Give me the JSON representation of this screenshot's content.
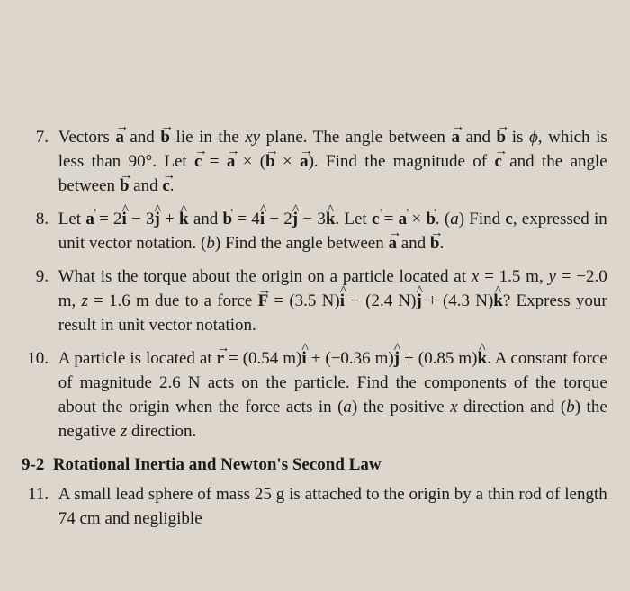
{
  "problems": {
    "p7": {
      "num": "7.",
      "t1": "Vectors ",
      "t2": " and ",
      "t3": " lie in the ",
      "t4": " plane. The angle between ",
      "t5": " and ",
      "t6": " is ",
      "t7": ", which is less than 90°. Let ",
      "t8": " = ",
      "t9": " × (",
      "t10": " × ",
      "t11": "). Find the magnitude of ",
      "t12": " and the angle between ",
      "t13": " and ",
      "t14": "."
    },
    "p8": {
      "num": "8.",
      "t1": "Let  ",
      "t2": " = 2",
      "t3": " − 3",
      "t4": " + ",
      "t5": "  and  ",
      "t6": " = 4",
      "t7": " − 2",
      "t8": " − 3",
      "t9": ".  Let  ",
      "t10": " = ",
      "t11": " × ",
      "t12": ". (",
      "t13": ") Find ",
      "t14": ", expressed in unit vector notation. (",
      "t15": ") Find the angle between ",
      "t16": " and ",
      "t17": "."
    },
    "p9": {
      "num": "9.",
      "t1": "What is the torque about the origin on a particle located at ",
      "t2": " = 1.5 m,  ",
      "t3": " = −2.0 m,  ",
      "t4": " = 1.6 m  due  to  a  force  ",
      "t5": " = (3.5 N)",
      "t6": " − (2.4 N)",
      "t7": " + (4.3 N)",
      "t8": "? Express your result in unit vector notation."
    },
    "p10": {
      "num": "10.",
      "t1": "A  particle  is  located  at  ",
      "t2": " = (0.54 m)",
      "t3": " + (−0.36 m)",
      "t4": " + (0.85 m)",
      "t5": ". A constant force of magnitude 2.6 N acts on the particle. Find the components of the torque about the origin when the force acts in (",
      "t6": ") the positive ",
      "t7": " direction and (",
      "t8": ") the negative ",
      "t9": " direction."
    },
    "p11": {
      "num": "11.",
      "t1": "A small lead sphere of mass 25 g is attached to the origin by a thin rod of length 74 cm and negligible"
    }
  },
  "symbols": {
    "a": "a",
    "b": "b",
    "c": "c",
    "r": "r",
    "F": "F",
    "i": "i",
    "j": "j",
    "k": "k",
    "x": "x",
    "y": "y",
    "z": "z",
    "xy": "xy",
    "phi": "ϕ",
    "lettera": "a",
    "letterb": "b",
    "boldc": "c"
  },
  "section": {
    "num": "9-2",
    "title": "Rotational Inertia and Newton's Second Law"
  }
}
